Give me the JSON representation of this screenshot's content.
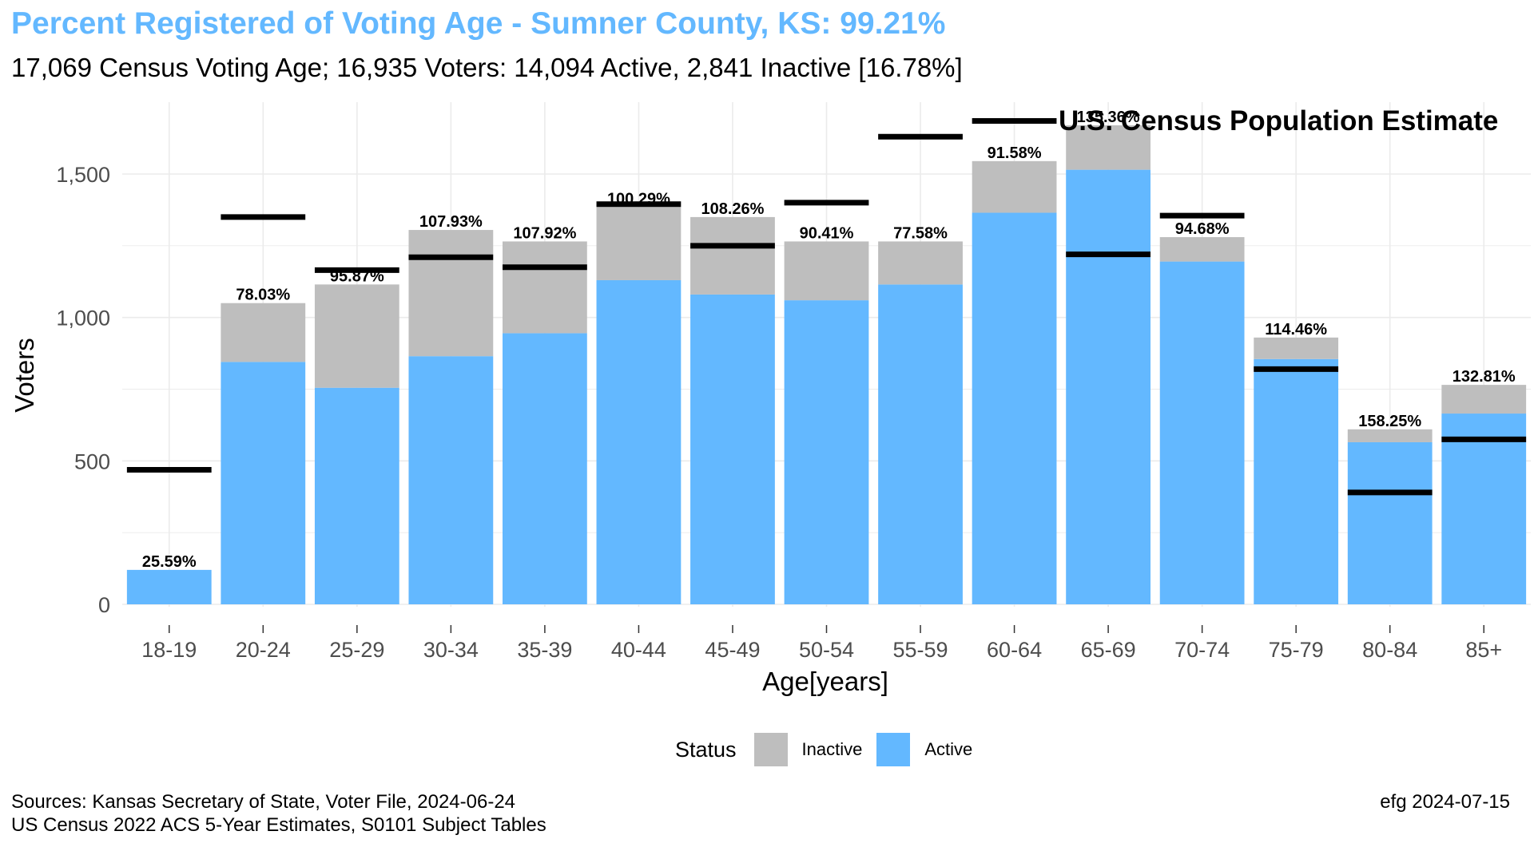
{
  "title": "Percent Registered of Voting Age - Sumner County, KS: 99.21%",
  "subtitle": "17,069 Census Voting Age; 16,935 Voters:  14,094 Active, 2,841 Inactive [16.78%]",
  "caption_left": [
    "Sources: Kansas Secretary of State, Voter File, 2024-06-24",
    "US Census 2022 ACS 5-Year Estimates, S0101 Subject Tables"
  ],
  "caption_right": "efg 2024-07-15",
  "colors": {
    "active": "#63b8ff",
    "inactive": "#bebebe",
    "census": "#000000",
    "title": "#63b8ff",
    "grid": "#ebebeb",
    "axis_text": "#4d4d4d"
  },
  "chart_data": {
    "type": "bar",
    "stacked": true,
    "xlabel": "Age[years]",
    "ylabel": "Voters",
    "ylim": [
      0,
      1700
    ],
    "yticks": [
      0,
      500,
      1000,
      1500
    ],
    "ytick_labels": [
      "0",
      "500",
      "1,000",
      "1,500"
    ],
    "grid": true,
    "legend": {
      "title": "Status",
      "placement": "bottom",
      "entries": [
        "Inactive",
        "Active"
      ]
    },
    "annotation": "U.S. Census Population Estimate",
    "categories": [
      "18-19",
      "20-24",
      "25-29",
      "30-34",
      "35-39",
      "40-44",
      "45-49",
      "50-54",
      "55-59",
      "60-64",
      "65-69",
      "70-74",
      "75-79",
      "80-84",
      "85+"
    ],
    "series": [
      {
        "name": "Active",
        "values": [
          120,
          845,
          755,
          865,
          945,
          1130,
          1080,
          1060,
          1115,
          1365,
          1515,
          1195,
          855,
          565,
          665
        ]
      },
      {
        "name": "Inactive",
        "values": [
          0,
          205,
          360,
          440,
          320,
          255,
          270,
          205,
          150,
          180,
          155,
          85,
          75,
          45,
          100
        ]
      }
    ],
    "census_estimate": [
      469,
      1350,
      1165,
      1210,
      1175,
      1395,
      1250,
      1400,
      1630,
      1685,
      1220,
      1355,
      820,
      390,
      575
    ],
    "bar_labels": [
      "25.59%",
      "78.03%",
      "95.87%",
      "107.93%",
      "107.92%",
      "100.29%",
      "108.26%",
      "90.41%",
      "77.58%",
      "91.58%",
      "135.36%",
      "94.68%",
      "114.46%",
      "158.25%",
      "132.81%"
    ]
  }
}
